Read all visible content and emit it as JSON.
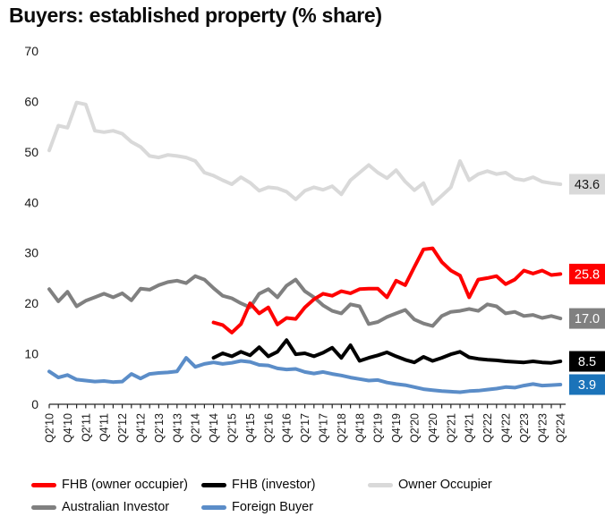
{
  "title": "Buyers: established property (% share)",
  "chart_data": {
    "type": "line",
    "title": "Buyers: established property (% share)",
    "ylim": [
      0,
      70
    ],
    "yticks": [
      0,
      10,
      20,
      30,
      40,
      50,
      60,
      70
    ],
    "grid": false,
    "legend_position": "bottom",
    "x_labels_shown_every": 2,
    "x": [
      "Q2'10",
      "Q3'10",
      "Q4'10",
      "Q1'11",
      "Q2'11",
      "Q3'11",
      "Q4'11",
      "Q1'12",
      "Q2'12",
      "Q3'12",
      "Q4'12",
      "Q1'13",
      "Q2'13",
      "Q3'13",
      "Q4'13",
      "Q1'14",
      "Q2'14",
      "Q3'14",
      "Q4'14",
      "Q1'15",
      "Q2'15",
      "Q3'15",
      "Q4'15",
      "Q1'16",
      "Q2'16",
      "Q3'16",
      "Q4'16",
      "Q1'17",
      "Q2'17",
      "Q3'17",
      "Q4'17",
      "Q1'18",
      "Q2'18",
      "Q3'18",
      "Q4'18",
      "Q1'19",
      "Q2'19",
      "Q3'19",
      "Q4'19",
      "Q1'20",
      "Q2'20",
      "Q3'20",
      "Q4'20",
      "Q1'21",
      "Q2'21",
      "Q3'21",
      "Q4'21",
      "Q1'22",
      "Q2'22",
      "Q3'22",
      "Q4'22",
      "Q1'23",
      "Q2'23",
      "Q3'23",
      "Q4'23",
      "Q1'24",
      "Q2'24"
    ],
    "series": [
      {
        "name": "Owner Occupier",
        "slug": "owner-occupier",
        "color": "#d9d9d9",
        "end_label": "43.6",
        "end_label_bg": "#d9d9d9",
        "end_label_text": "#1a1a1a",
        "values": [
          50.3,
          55.2,
          54.8,
          59.8,
          59.4,
          54.2,
          53.9,
          54.2,
          53.6,
          52.0,
          51.0,
          49.2,
          48.9,
          49.4,
          49.2,
          48.9,
          48.2,
          45.9,
          45.3,
          44.4,
          43.6,
          45.0,
          43.9,
          42.3,
          43.0,
          42.8,
          42.1,
          40.6,
          42.3,
          43.0,
          42.5,
          43.2,
          41.6,
          44.4,
          45.9,
          47.4,
          45.9,
          44.8,
          46.4,
          44.1,
          42.4,
          43.8,
          39.7,
          41.3,
          43.0,
          48.2,
          44.4,
          45.6,
          46.2,
          45.6,
          45.9,
          44.7,
          44.4,
          45.0,
          44.1,
          43.8,
          43.6
        ]
      },
      {
        "name": "Australian Investor",
        "slug": "australian-investor",
        "color": "#808080",
        "end_label": "17.0",
        "end_label_bg": "#808080",
        "end_label_text": "#ffffff",
        "values": [
          22.8,
          20.4,
          22.3,
          19.4,
          20.5,
          21.2,
          21.9,
          21.2,
          22.0,
          20.6,
          22.9,
          22.7,
          23.6,
          24.2,
          24.5,
          24.0,
          25.4,
          24.7,
          23.0,
          21.5,
          21.0,
          20.0,
          19.2,
          21.9,
          22.8,
          21.2,
          23.5,
          24.7,
          22.4,
          21.2,
          19.6,
          18.5,
          18.0,
          19.8,
          19.4,
          15.9,
          16.3,
          17.3,
          18.0,
          18.7,
          16.8,
          16.0,
          15.5,
          17.5,
          18.3,
          18.5,
          18.9,
          18.5,
          19.8,
          19.4,
          18.0,
          18.3,
          17.5,
          17.7,
          17.1,
          17.5,
          17.0
        ]
      },
      {
        "name": "Foreign Buyer",
        "slug": "foreign-buyer",
        "color": "#5b8dc8",
        "end_label": "3.9",
        "end_label_bg": "#1b73b9",
        "end_label_text": "#ffffff",
        "values": [
          6.5,
          5.3,
          5.8,
          4.9,
          4.7,
          4.5,
          4.6,
          4.4,
          4.5,
          6.0,
          5.1,
          6.0,
          6.2,
          6.3,
          6.5,
          9.2,
          7.4,
          8.0,
          8.3,
          8.0,
          8.2,
          8.6,
          8.4,
          7.8,
          7.7,
          7.1,
          6.9,
          7.0,
          6.4,
          6.1,
          6.4,
          6.0,
          5.7,
          5.3,
          5.0,
          4.7,
          4.8,
          4.3,
          4.0,
          3.8,
          3.4,
          3.0,
          2.8,
          2.6,
          2.5,
          2.4,
          2.6,
          2.7,
          2.9,
          3.1,
          3.4,
          3.3,
          3.7,
          4.0,
          3.7,
          3.8,
          3.9
        ]
      },
      {
        "name": "FHB (investor)",
        "slug": "fhb-investor",
        "color": "#000000",
        "end_label": "8.5",
        "end_label_bg": "#000000",
        "end_label_text": "#ffffff",
        "values": [
          null,
          null,
          null,
          null,
          null,
          null,
          null,
          null,
          null,
          null,
          null,
          null,
          null,
          null,
          null,
          null,
          null,
          null,
          9.2,
          10.1,
          9.5,
          10.4,
          9.7,
          11.3,
          9.5,
          10.4,
          12.7,
          9.9,
          10.1,
          9.5,
          10.2,
          11.2,
          9.2,
          11.7,
          8.6,
          9.2,
          9.7,
          10.3,
          9.5,
          8.8,
          8.3,
          9.4,
          8.6,
          9.2,
          9.9,
          10.4,
          9.3,
          9.0,
          8.8,
          8.7,
          8.5,
          8.4,
          8.3,
          8.5,
          8.3,
          8.2,
          8.5
        ]
      },
      {
        "name": "FHB (owner occupier)",
        "slug": "fhb-owner-occupier",
        "color": "#fe0000",
        "end_label": "25.8",
        "end_label_bg": "#fe0000",
        "end_label_text": "#ffffff",
        "values": [
          null,
          null,
          null,
          null,
          null,
          null,
          null,
          null,
          null,
          null,
          null,
          null,
          null,
          null,
          null,
          null,
          null,
          null,
          16.2,
          15.7,
          14.2,
          15.9,
          20.0,
          18.0,
          19.2,
          15.8,
          17.1,
          16.9,
          19.2,
          20.8,
          21.9,
          21.5,
          22.4,
          22.0,
          22.8,
          22.9,
          22.9,
          21.2,
          24.5,
          23.6,
          27.2,
          30.7,
          30.9,
          28.2,
          26.5,
          25.5,
          21.2,
          24.7,
          25.0,
          25.4,
          23.8,
          24.7,
          26.5,
          25.9,
          26.5,
          25.6,
          25.8
        ]
      }
    ],
    "legend_order": [
      4,
      3,
      0,
      1,
      2
    ]
  }
}
